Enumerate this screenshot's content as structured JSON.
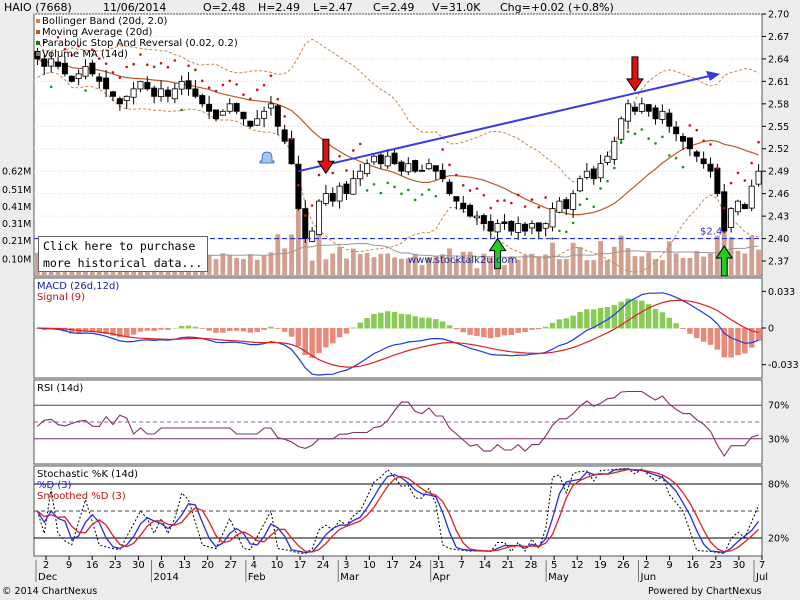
{
  "header": {
    "ticker": "HAIO (7668)",
    "date": "11/06/2014",
    "open": "O=2.48",
    "high": "H=2.49",
    "low": "L=2.47",
    "close": "C=2.49",
    "volume": "V=31.0K",
    "change": "Chg=+0.02 (+0.8%)"
  },
  "legend": {
    "bollinger": "Bollinger Band (20d, 2.0)",
    "ma": "Moving Average (20d)",
    "psar": "Parabolic Stop And Reversal (0.02, 0.2)",
    "volma": "Volume MA (14d)"
  },
  "watermark": "www.stocktalk2u.com",
  "support_label": "$2.4",
  "buy_box": {
    "line1": "Click here to purchase",
    "line2": "more historical data..."
  },
  "footer": {
    "copyright": "© 2014 ChartNexus",
    "powered": "Powered by ChartNexus"
  },
  "colors": {
    "up_candle": "#ffffff",
    "down_candle": "#000000",
    "bollinger": "#c8874a",
    "ma": "#b85a2a",
    "psar_red": "#cc1111",
    "psar_green": "#119911",
    "volume": "#d2a090",
    "trendline": "#3a3adf",
    "support": "#2b2bd0",
    "macd": "#1a3adf",
    "signal": "#e02020",
    "rsi": "#80306b",
    "stoch_k": "#000000",
    "stoch_d": "#2230e0",
    "stoch_smooth": "#e02020",
    "grid_purple": "#7a2f6a"
  },
  "chart_data": [
    {
      "type": "candlestick",
      "title": "HAIO (7668)",
      "ylim": [
        2.35,
        2.7
      ],
      "y_ticks": [
        "2.70",
        "2.67",
        "2.64",
        "2.61",
        "2.58",
        "2.55",
        "2.52",
        "2.49",
        "2.46",
        "2.43",
        "2.40",
        "2.37"
      ],
      "volume_ticks": [
        "0.62M",
        "0.51M",
        "0.41M",
        "0.31M",
        "0.21M",
        "0.10M"
      ],
      "x_ticks": [
        "2",
        "9",
        "16",
        "23",
        "30",
        "6",
        "13",
        "20",
        "27",
        "4",
        "10",
        "17",
        "24",
        "3",
        "10",
        "17",
        "24",
        "31",
        "7",
        "14",
        "21",
        "28",
        "5",
        "12",
        "19",
        "26",
        "2",
        "9",
        "16",
        "23",
        "30",
        "7"
      ],
      "month_labels": [
        "Dec",
        "2014",
        "Feb",
        "Mar",
        "Apr",
        "May",
        "Jun",
        "Jul"
      ],
      "close": [
        2.64,
        2.63,
        2.64,
        2.63,
        2.62,
        2.61,
        2.62,
        2.63,
        2.62,
        2.61,
        2.6,
        2.59,
        2.58,
        2.59,
        2.6,
        2.61,
        2.6,
        2.59,
        2.6,
        2.59,
        2.6,
        2.61,
        2.6,
        2.59,
        2.58,
        2.57,
        2.56,
        2.57,
        2.58,
        2.57,
        2.56,
        2.55,
        2.56,
        2.57,
        2.58,
        2.55,
        2.53,
        2.5,
        2.44,
        2.4,
        2.41,
        2.45,
        2.46,
        2.45,
        2.47,
        2.46,
        2.48,
        2.49,
        2.5,
        2.51,
        2.5,
        2.51,
        2.5,
        2.49,
        2.5,
        2.49,
        2.49,
        2.5,
        2.49,
        2.48,
        2.46,
        2.45,
        2.44,
        2.43,
        2.43,
        2.42,
        2.41,
        2.42,
        2.42,
        2.41,
        2.42,
        2.41,
        2.42,
        2.41,
        2.42,
        2.44,
        2.45,
        2.44,
        2.46,
        2.48,
        2.49,
        2.48,
        2.5,
        2.51,
        2.53,
        2.56,
        2.58,
        2.57,
        2.58,
        2.57,
        2.56,
        2.57,
        2.55,
        2.54,
        2.53,
        2.52,
        2.51,
        2.5,
        2.49,
        2.46,
        2.41,
        2.44,
        2.45,
        2.44,
        2.47,
        2.49
      ],
      "support_level": 2.4,
      "markers": [
        {
          "type": "sell-arrow",
          "date_index": 42
        },
        {
          "type": "sell-arrow",
          "date_index": 87
        },
        {
          "type": "buy-arrow",
          "date_index": 67
        },
        {
          "type": "buy-arrow",
          "date_index": 100
        }
      ]
    },
    {
      "type": "line",
      "title": "MACD (26d,12d)",
      "series": [
        {
          "name": "MACD (26d,12d)"
        },
        {
          "name": "Signal (9)"
        }
      ],
      "y_ticks": [
        "0.033",
        "0",
        "-0.033"
      ],
      "ylim": [
        -0.045,
        0.045
      ]
    },
    {
      "type": "line",
      "title": "RSI (14d)",
      "y_ticks": [
        "70%",
        "30%"
      ],
      "ylim": [
        0,
        100
      ]
    },
    {
      "type": "line",
      "title": "Stochastic %K (14d)",
      "series": [
        {
          "name": "Stochastic %K (14d)"
        },
        {
          "name": "%D (3)"
        },
        {
          "name": "Smoothed %D (3)"
        }
      ],
      "y_ticks": [
        "80%",
        "20%"
      ],
      "ylim": [
        0,
        100
      ]
    }
  ]
}
